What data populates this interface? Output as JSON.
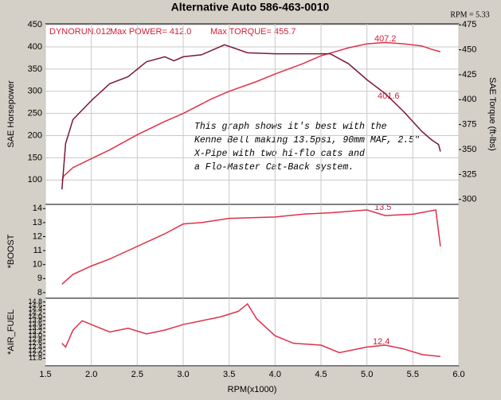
{
  "title": "Alternative Auto 586-463-0010",
  "cursor": "RPM = 5.33",
  "header": {
    "run": "DYNORUN.012",
    "power": "Max POWER= 412.0",
    "torque": "Max TORQUE= 455.7"
  },
  "note": [
    "This graph shows it's best with the",
    "Kenne Bell making 13.5psi, 90mm MAF, 2.5\"",
    "X-Pipe with two hi-flo cats and",
    "a Flo-Master Cat-Back system."
  ],
  "readouts": [
    "407.2",
    "401.6",
    "13.5",
    "12.4"
  ],
  "chart_data": [
    {
      "type": "line",
      "ylabel": "SAE Horsepower",
      "y2label": "SAE Torque (ft-lbs)",
      "grid": true,
      "ylim": [
        45,
        452
      ],
      "yticks": [
        100,
        150,
        200,
        250,
        300,
        350,
        400,
        450
      ],
      "y2lim": [
        295,
        476
      ],
      "y2ticks": [
        300,
        325,
        350,
        375,
        400,
        425,
        450,
        475
      ],
      "series": [
        {
          "color": "#e0304a",
          "x": [
            1.68,
            1.7,
            1.8,
            2.0,
            2.2,
            2.5,
            2.8,
            3.0,
            3.3,
            3.5,
            3.8,
            4.0,
            4.3,
            4.5,
            4.8,
            5.0,
            5.2,
            5.4,
            5.6,
            5.7,
            5.8
          ],
          "values": [
            98,
            109,
            128,
            148,
            168,
            202,
            232,
            250,
            282,
            300,
            322,
            339,
            362,
            380,
            398,
            407,
            410,
            407,
            402,
            395,
            389
          ]
        },
        {
          "color": "#7a1838",
          "axis": "y2",
          "x": [
            1.68,
            1.72,
            1.8,
            2.0,
            2.2,
            2.4,
            2.6,
            2.8,
            2.9,
            3.0,
            3.2,
            3.45,
            3.7,
            4.0,
            4.3,
            4.6,
            4.8,
            5.0,
            5.2,
            5.4,
            5.6,
            5.7,
            5.78,
            5.8
          ],
          "values": [
            310,
            356,
            380,
            399,
            416,
            423,
            438,
            443,
            439,
            443,
            445,
            455,
            447,
            446,
            446,
            446,
            436,
            420,
            406,
            388,
            368,
            360,
            355,
            348
          ]
        }
      ]
    },
    {
      "type": "line",
      "ylabel": "*BOOST",
      "ylim": [
        7.6,
        14.3
      ],
      "yticks": [
        8,
        9,
        10,
        11,
        12,
        13,
        14
      ],
      "series": [
        {
          "color": "#e0304a",
          "x": [
            1.68,
            1.8,
            2.0,
            2.2,
            2.4,
            2.6,
            2.8,
            3.0,
            3.2,
            3.5,
            4.0,
            4.3,
            4.6,
            5.0,
            5.2,
            5.5,
            5.75,
            5.8
          ],
          "values": [
            8.6,
            9.3,
            9.9,
            10.4,
            11.0,
            11.6,
            12.2,
            12.9,
            13.0,
            13.3,
            13.4,
            13.6,
            13.7,
            13.9,
            13.5,
            13.6,
            13.9,
            11.3
          ]
        }
      ]
    },
    {
      "type": "line",
      "ylabel": "*AIR_FUEL",
      "xlabel": "RPM(x1000)",
      "ylim": [
        11.4,
        15.0
      ],
      "yticks": [
        11.8,
        {
          "value": 12,
          "label": "12.0"
        },
        12.2,
        12.4,
        12.6,
        12.8,
        {
          "value": 13,
          "label": "13.0"
        },
        13.2,
        13.4,
        13.6,
        13.8,
        {
          "value": 14,
          "label": "14.0"
        },
        14.2,
        14.4,
        14.6,
        14.8
      ],
      "xlim": [
        1.5,
        6.0
      ],
      "xticks": [
        1.5,
        {
          "value": 2,
          "label": "2.0"
        },
        2.5,
        {
          "value": 3,
          "label": "3.0"
        },
        3.5,
        {
          "value": 4,
          "label": "4.0"
        },
        4.5,
        {
          "value": 5,
          "label": "5.0"
        },
        5.5,
        {
          "value": 6,
          "label": "6.0"
        }
      ],
      "series": [
        {
          "color": "#e0304a",
          "x": [
            1.68,
            1.72,
            1.8,
            1.9,
            2.0,
            2.2,
            2.4,
            2.6,
            2.8,
            3.0,
            3.2,
            3.4,
            3.6,
            3.7,
            3.8,
            4.0,
            4.2,
            4.5,
            4.7,
            5.0,
            5.2,
            5.4,
            5.6,
            5.8
          ],
          "values": [
            12.6,
            12.4,
            13.3,
            13.8,
            13.6,
            13.2,
            13.4,
            13.1,
            13.3,
            13.6,
            13.8,
            14.0,
            14.3,
            14.7,
            13.9,
            13.0,
            12.6,
            12.5,
            12.1,
            12.4,
            12.5,
            12.3,
            12.0,
            11.9
          ]
        }
      ]
    }
  ]
}
